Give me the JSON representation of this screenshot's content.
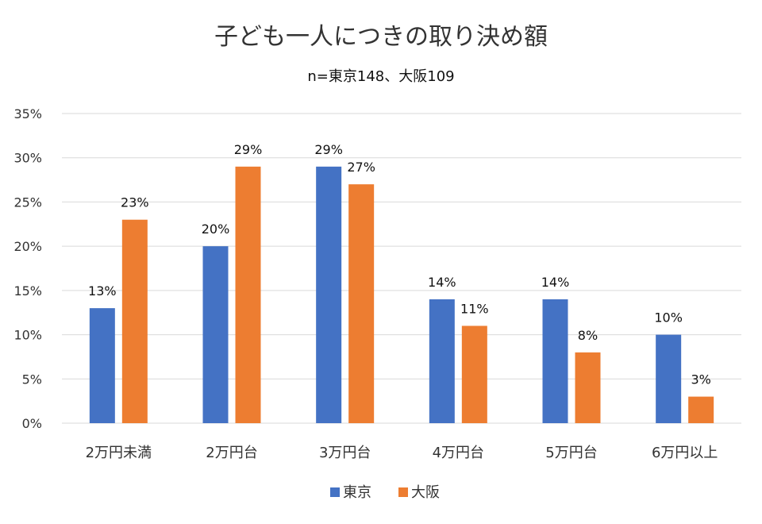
{
  "chart_data": {
    "type": "bar",
    "title": "子ども一人につきの取り決め額",
    "subtitle": "n=東京148、大阪109",
    "categories": [
      "2万円未満",
      "2万円台",
      "3万円台",
      "4万円台",
      "5万円台",
      "6万円以上"
    ],
    "series": [
      {
        "name": "東京",
        "color": "#4472C4",
        "values": [
          13,
          20,
          29,
          14,
          14,
          10
        ],
        "labels": [
          "13%",
          "20%",
          "29%",
          "14%",
          "14%",
          "10%"
        ]
      },
      {
        "name": "大阪",
        "color": "#ED7D31",
        "values": [
          23,
          29,
          27,
          11,
          8,
          3
        ],
        "labels": [
          "23%",
          "29%",
          "27%",
          "11%",
          "8%",
          "3%"
        ]
      }
    ],
    "ylim": [
      0,
      35
    ],
    "yticks": [
      0,
      5,
      10,
      15,
      20,
      25,
      30,
      35
    ],
    "ytick_labels": [
      "0%",
      "5%",
      "10%",
      "15%",
      "20%",
      "25%",
      "30%",
      "35%"
    ],
    "grid": true,
    "legend": "bottom-center"
  }
}
